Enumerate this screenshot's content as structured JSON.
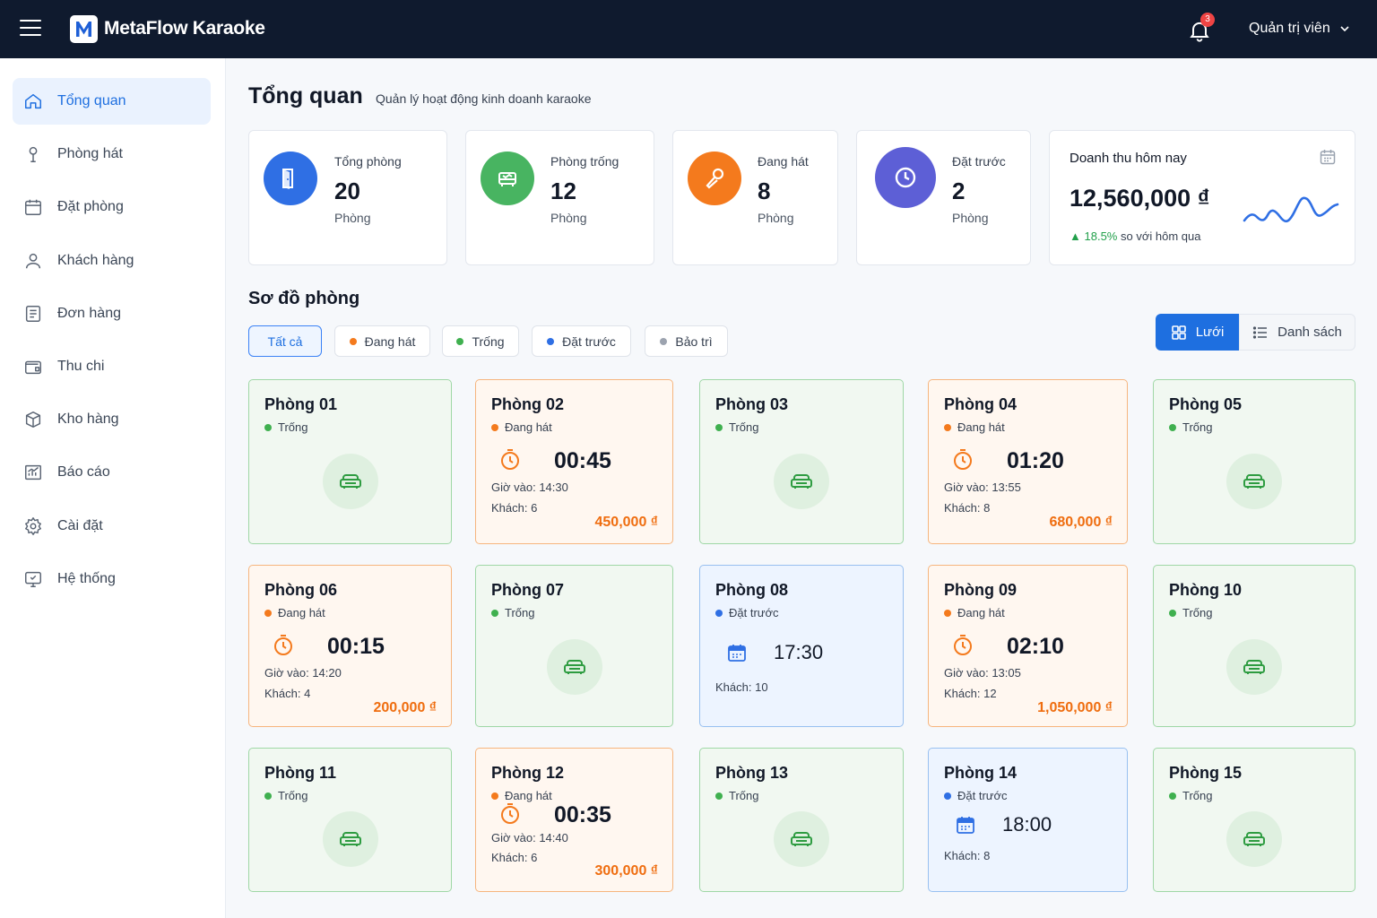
{
  "app": {
    "brand": "MetaFlow Karaoke",
    "notif_count": "3",
    "user": "Quản trị viên"
  },
  "sidebar": {
    "items": [
      {
        "label": "Tổng quan",
        "icon": "home-icon",
        "active": true
      },
      {
        "label": "Phòng hát",
        "icon": "microphone-icon"
      },
      {
        "label": "Đặt phòng",
        "icon": "calendar-icon"
      },
      {
        "label": "Khách hàng",
        "icon": "user-icon"
      },
      {
        "label": "Đơn hàng",
        "icon": "document-icon"
      },
      {
        "label": "Thu chi",
        "icon": "wallet-icon"
      },
      {
        "label": "Kho hàng",
        "icon": "box-icon"
      },
      {
        "label": "Báo cáo",
        "icon": "chart-icon"
      },
      {
        "label": "Cài đặt",
        "icon": "gear-icon"
      },
      {
        "label": "Hệ thống",
        "icon": "monitor-icon"
      }
    ]
  },
  "page": {
    "title": "Tổng quan",
    "subtitle": "Quản lý hoạt động kinh doanh karaoke"
  },
  "stats": [
    {
      "label": "Tổng phòng",
      "value": "20",
      "unit": "Phòng",
      "color": "#2f6fe4",
      "icon": "door-icon"
    },
    {
      "label": "Phòng trống",
      "value": "12",
      "unit": "Phòng",
      "color": "#48b461",
      "icon": "sofa-icon"
    },
    {
      "label": "Đang hát",
      "value": "8",
      "unit": "Phòng",
      "color": "#f47a1d",
      "icon": "microphone-icon"
    },
    {
      "label": "Đặt trước",
      "value": "2",
      "unit": "Phòng",
      "color": "#5d5fd6",
      "icon": "clock-icon"
    }
  ],
  "revenue": {
    "title": "Doanh thu hôm nay",
    "value": "12,560,000 ₫",
    "change": "18.5%",
    "change_text": "so với hôm qua"
  },
  "room_map": {
    "title": "Sơ đồ phòng",
    "filters": [
      {
        "label": "Tất cả",
        "active": true
      },
      {
        "label": "Đang hát",
        "color": "#f47a1d"
      },
      {
        "label": "Trống",
        "color": "#3fb04f"
      },
      {
        "label": "Đặt trước",
        "color": "#2f6fe4"
      },
      {
        "label": "Bảo trì",
        "color": "#9ca3af"
      }
    ],
    "views": [
      {
        "label": "Lưới",
        "active": true
      },
      {
        "label": "Danh sách"
      }
    ]
  },
  "rooms": [
    {
      "name": "Phòng 01",
      "status": "free",
      "status_label": "Trống"
    },
    {
      "name": "Phòng 02",
      "status": "busy",
      "status_label": "Đang hát",
      "time": "00:45",
      "checkin": "Giờ vào: 14:30",
      "guests": "Khách: 6",
      "price": "450,000 ₫"
    },
    {
      "name": "Phòng 03",
      "status": "free",
      "status_label": "Trống"
    },
    {
      "name": "Phòng 04",
      "status": "busy",
      "status_label": "Đang hát",
      "time": "01:20",
      "checkin": "Giờ vào: 13:55",
      "guests": "Khách: 8",
      "price": "680,000 ₫"
    },
    {
      "name": "Phòng 05",
      "status": "free",
      "status_label": "Trống"
    },
    {
      "name": "Phòng 06",
      "status": "busy",
      "status_label": "Đang hát",
      "time": "00:15",
      "checkin": "Giờ vào: 14:20",
      "guests": "Khách: 4",
      "price": "200,000 ₫"
    },
    {
      "name": "Phòng 07",
      "status": "free",
      "status_label": "Trống"
    },
    {
      "name": "Phòng 08",
      "status": "booked",
      "status_label": "Đặt trước",
      "time": "17:30",
      "guests": "Khách: 10"
    },
    {
      "name": "Phòng 09",
      "status": "busy",
      "status_label": "Đang hát",
      "time": "02:10",
      "checkin": "Giờ vào: 13:05",
      "guests": "Khách: 12",
      "price": "1,050,000 ₫"
    },
    {
      "name": "Phòng 10",
      "status": "free",
      "status_label": "Trống"
    },
    {
      "name": "Phòng 11",
      "status": "free",
      "status_label": "Trống"
    },
    {
      "name": "Phòng 12",
      "status": "busy",
      "status_label": "Đang hát",
      "time": "00:35",
      "checkin": "Giờ vào: 14:40",
      "guests": "Khách: 6",
      "price": "300,000 ₫"
    },
    {
      "name": "Phòng 13",
      "status": "free",
      "status_label": "Trống"
    },
    {
      "name": "Phòng 14",
      "status": "booked",
      "status_label": "Đặt trước",
      "time": "18:00",
      "guests": "Khách: 8"
    },
    {
      "name": "Phòng 15",
      "status": "free",
      "status_label": "Trống"
    }
  ]
}
